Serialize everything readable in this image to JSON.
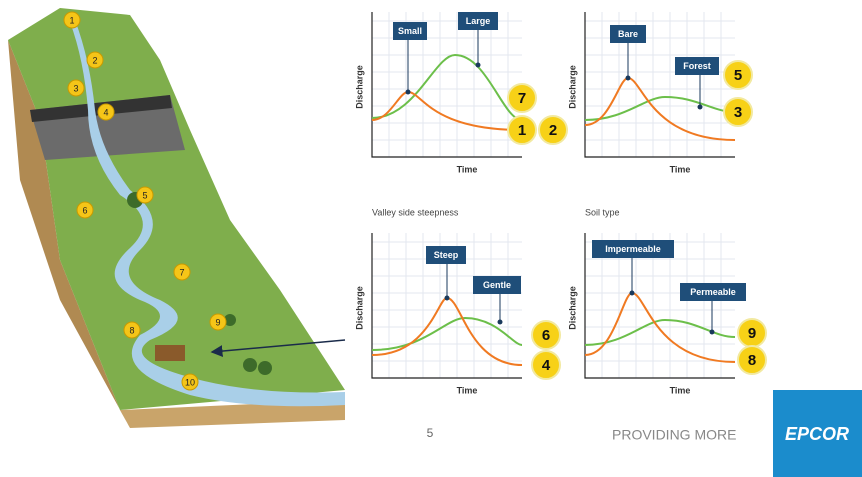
{
  "landscape": {
    "markers": [
      "1",
      "2",
      "3",
      "4",
      "5",
      "6",
      "7",
      "8",
      "9",
      "10"
    ]
  },
  "graphs": [
    {
      "y_label": "Discharge",
      "x_label": "Time",
      "labels": [
        "Small",
        "Large"
      ],
      "badges": [
        "7",
        "1",
        "2"
      ]
    },
    {
      "y_label": "Discharge",
      "x_label": "Time",
      "labels": [
        "Bare",
        "Forest"
      ],
      "badges": [
        "5",
        "3"
      ]
    },
    {
      "caption": "Valley side steepness",
      "y_label": "Discharge",
      "x_label": "Time",
      "labels": [
        "Steep",
        "Gentle"
      ],
      "badges": [
        "6",
        "4"
      ]
    },
    {
      "caption": "Soil type",
      "y_label": "Discharge",
      "x_label": "Time",
      "labels": [
        "Impermeable",
        "Permeable"
      ],
      "badges": [
        "9",
        "8"
      ]
    }
  ],
  "footer": {
    "page_number": "5",
    "tagline": "PROVIDING MORE",
    "logo": "EPCOR"
  }
}
